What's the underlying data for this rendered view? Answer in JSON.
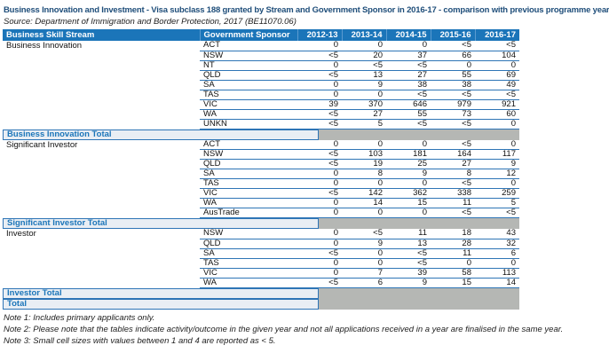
{
  "title": "Business Innovation and Investment - Visa subclass 188 granted by Stream and Government Sponsor in 2016-17 - comparison with previous programme year",
  "source": "Source: Department of Immigration and Border Protection, 2017 (BE11070.06)",
  "table": {
    "headers": [
      "Business Skill Stream",
      "Government Sponsor",
      "2012-13",
      "2013-14",
      "2014-15",
      "2015-16",
      "2016-17"
    ],
    "sections": [
      {
        "stream": "Business Innovation",
        "rows": [
          [
            "ACT",
            "0",
            "0",
            "0",
            "<5",
            "<5"
          ],
          [
            "NSW",
            "<5",
            "20",
            "37",
            "66",
            "104"
          ],
          [
            "NT",
            "0",
            "<5",
            "<5",
            "0",
            "0"
          ],
          [
            "QLD",
            "<5",
            "13",
            "27",
            "55",
            "69"
          ],
          [
            "SA",
            "0",
            "9",
            "38",
            "38",
            "49"
          ],
          [
            "TAS",
            "0",
            "0",
            "<5",
            "<5",
            "<5"
          ],
          [
            "VIC",
            "39",
            "370",
            "646",
            "979",
            "921"
          ],
          [
            "WA",
            "<5",
            "27",
            "55",
            "73",
            "60"
          ],
          [
            "UNKN",
            "<5",
            "5",
            "<5",
            "<5",
            "0"
          ]
        ],
        "total_label": "Business Innovation Total"
      },
      {
        "stream": "Significant Investor",
        "rows": [
          [
            "ACT",
            "0",
            "0",
            "0",
            "<5",
            "0"
          ],
          [
            "NSW",
            "<5",
            "103",
            "181",
            "164",
            "117"
          ],
          [
            "QLD",
            "<5",
            "19",
            "25",
            "27",
            "9"
          ],
          [
            "SA",
            "0",
            "8",
            "9",
            "8",
            "12"
          ],
          [
            "TAS",
            "0",
            "0",
            "0",
            "<5",
            "0"
          ],
          [
            "VIC",
            "<5",
            "142",
            "362",
            "338",
            "259"
          ],
          [
            "WA",
            "0",
            "14",
            "15",
            "11",
            "5"
          ],
          [
            "AusTrade",
            "0",
            "0",
            "0",
            "<5",
            "<5"
          ]
        ],
        "total_label": "Significant Investor Total"
      },
      {
        "stream": "Investor",
        "rows": [
          [
            "NSW",
            "0",
            "<5",
            "11",
            "18",
            "43"
          ],
          [
            "QLD",
            "0",
            "9",
            "13",
            "28",
            "32"
          ],
          [
            "SA",
            "<5",
            "0",
            "<5",
            "11",
            "6"
          ],
          [
            "TAS",
            "0",
            "0",
            "<5",
            "0",
            "0"
          ],
          [
            "VIC",
            "0",
            "7",
            "39",
            "58",
            "113"
          ],
          [
            "WA",
            "<5",
            "6",
            "9",
            "15",
            "14"
          ]
        ],
        "total_label": "Investor Total"
      }
    ],
    "grand_total_label": "Total"
  },
  "notes": [
    "Note 1: Includes primary applicants only.",
    "Note 2: Please note that the tables indicate activity/outcome in the given year and not all applications received in a year are finalised in the same year.",
    "Note 3: Small cell sizes with values between 1 and 4 are reported as < 5."
  ],
  "colors": {
    "header_bg": "#1b75b9",
    "row_border": "#2e75b6",
    "band_text": "#1b75b9",
    "band_bg": "#e9eef4",
    "total_grey": "#b5b7b4",
    "title_text": "#1f4e7a"
  }
}
